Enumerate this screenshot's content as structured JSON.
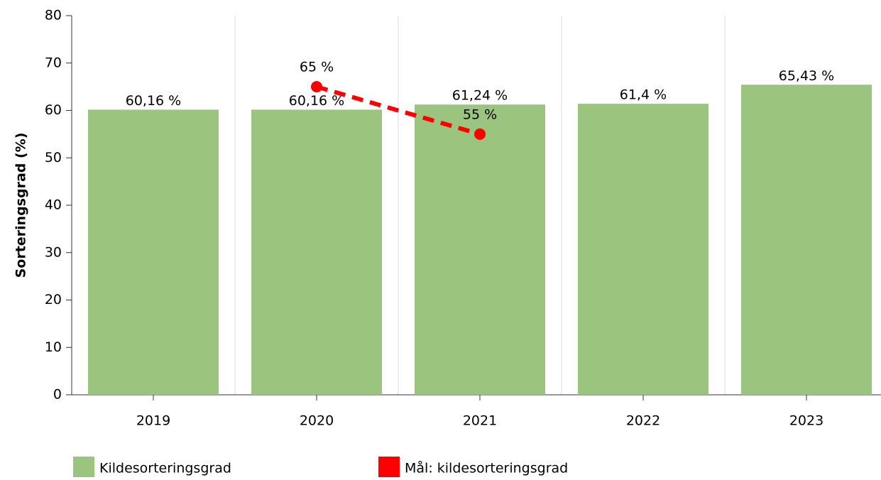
{
  "chart_data": {
    "type": "bar",
    "y_label": "Sorteringsgrad (%)",
    "categories": [
      "2019",
      "2020",
      "2021",
      "2022",
      "2023"
    ],
    "ylim": [
      0,
      80
    ],
    "yticks": [
      0,
      10,
      20,
      30,
      40,
      50,
      60,
      70,
      80
    ],
    "series": [
      {
        "name": "Kildesorteringsgrad",
        "type": "bar",
        "color": "#9bc47f",
        "values": [
          60.16,
          60.16,
          61.24,
          61.4,
          65.43
        ],
        "value_labels": [
          "60,16 %",
          "60,16 %",
          "61,24 %",
          "61,4 %",
          "65,43 %"
        ]
      },
      {
        "name": "Mål: kildesorteringsgrad",
        "type": "line",
        "color": "#ff0000",
        "values": [
          null,
          65,
          55,
          null,
          null
        ],
        "value_labels": [
          null,
          "65 %",
          "55 %",
          null,
          null
        ]
      }
    ]
  }
}
